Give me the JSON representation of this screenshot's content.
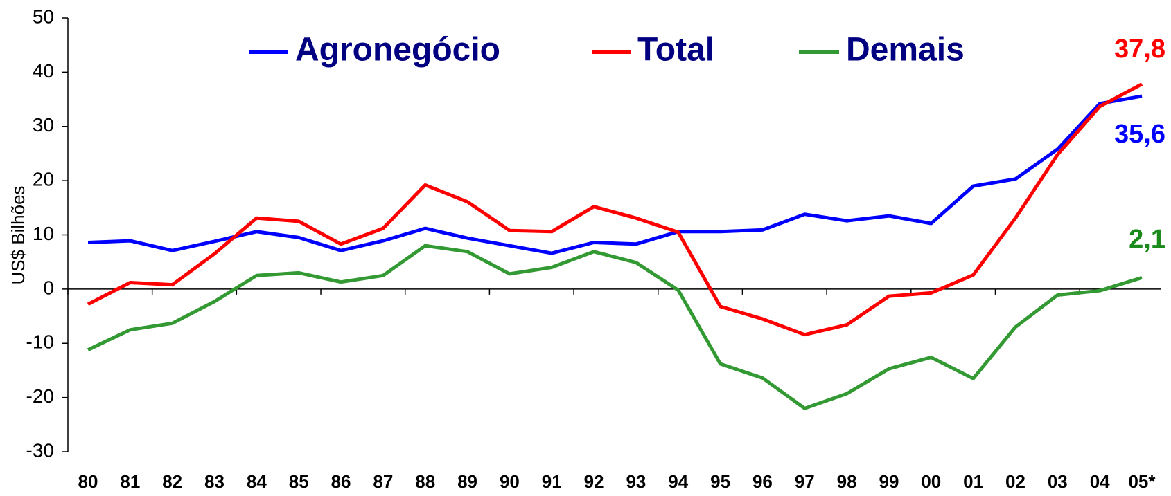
{
  "chart_data": {
    "type": "line",
    "y_label": "US$ Bilhões",
    "categories": [
      "80",
      "81",
      "82",
      "83",
      "84",
      "85",
      "86",
      "87",
      "88",
      "89",
      "90",
      "91",
      "92",
      "93",
      "94",
      "95",
      "96",
      "97",
      "98",
      "99",
      "00",
      "01",
      "02",
      "03",
      "04",
      "05*"
    ],
    "series": [
      {
        "name": "Agronegócio",
        "color": "#0000ff",
        "label_color": "#0000ff",
        "values": [
          8.6,
          8.9,
          7.1,
          8.8,
          10.6,
          9.5,
          7.1,
          8.9,
          11.2,
          9.4,
          8.0,
          6.6,
          8.6,
          8.3,
          10.6,
          10.6,
          10.9,
          13.8,
          12.6,
          13.5,
          12.1,
          19.0,
          20.3,
          25.8,
          34.2,
          35.6
        ],
        "value_labels": [
          null,
          null,
          null,
          null,
          null,
          null,
          null,
          null,
          null,
          null,
          null,
          null,
          null,
          null,
          null,
          null,
          null,
          null,
          null,
          null,
          null,
          null,
          null,
          null,
          null,
          "35,6"
        ]
      },
      {
        "name": "Total",
        "color": "#ff0000",
        "label_color": "#ff0000",
        "values": [
          -2.8,
          1.2,
          0.8,
          6.5,
          13.1,
          12.5,
          8.3,
          11.2,
          19.2,
          16.1,
          10.8,
          10.6,
          15.2,
          13.1,
          10.5,
          -3.2,
          -5.5,
          -8.4,
          -6.6,
          -1.3,
          -0.7,
          2.6,
          13.1,
          24.8,
          33.7,
          37.8
        ],
        "value_labels": [
          null,
          null,
          null,
          null,
          null,
          null,
          null,
          null,
          null,
          null,
          null,
          null,
          null,
          null,
          null,
          null,
          null,
          null,
          null,
          null,
          null,
          null,
          null,
          null,
          null,
          "37,8"
        ]
      },
      {
        "name": "Demais",
        "color": "#339933",
        "label_color": "#1a8a1a",
        "values": [
          -11.2,
          -7.5,
          -6.3,
          -2.3,
          2.5,
          3.0,
          1.3,
          2.5,
          8.0,
          6.9,
          2.8,
          4.0,
          6.9,
          4.9,
          -0.2,
          -13.8,
          -16.4,
          -22.0,
          -19.3,
          -14.7,
          -12.6,
          -16.5,
          -7.0,
          -1.1,
          -0.3,
          2.1
        ],
        "value_labels": [
          null,
          null,
          null,
          null,
          null,
          null,
          null,
          null,
          null,
          null,
          null,
          null,
          null,
          null,
          null,
          null,
          null,
          null,
          null,
          null,
          null,
          null,
          null,
          null,
          null,
          "2,1"
        ]
      }
    ],
    "ylim": [
      -30,
      50
    ],
    "yticks": [
      -30,
      -20,
      -10,
      0,
      10,
      20,
      30,
      40,
      50
    ],
    "grid": false,
    "legend": "top"
  }
}
